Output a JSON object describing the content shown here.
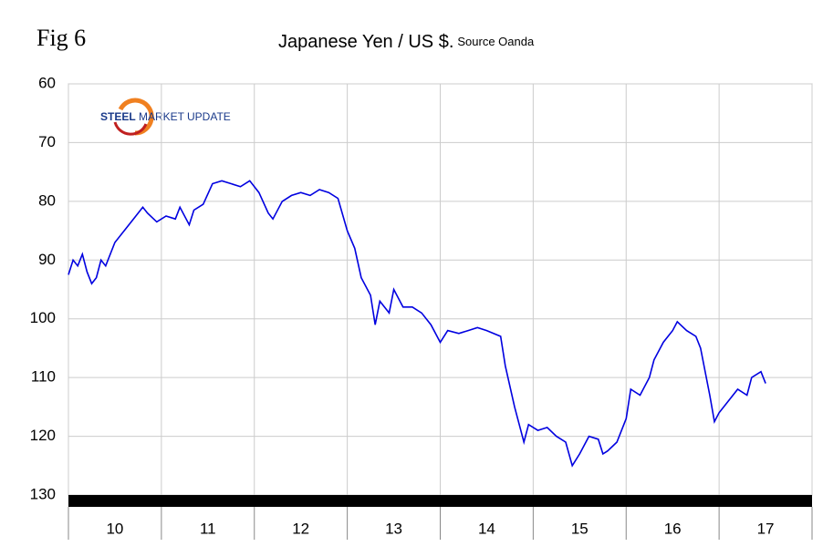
{
  "chart_data": {
    "type": "line",
    "figure_label": "Fig 6",
    "title": "Japanese Yen / US $.",
    "subtitle": "Source Oanda",
    "logo": [
      "STEEL",
      "MARKET",
      "UPDATE"
    ],
    "x_labels": [
      "10",
      "11",
      "12",
      "13",
      "14",
      "15",
      "16",
      "17"
    ],
    "xlim": [
      10,
      18
    ],
    "xticks": [
      10,
      11,
      12,
      13,
      14,
      15,
      16,
      17,
      18
    ],
    "ylim": [
      60,
      130
    ],
    "yticks": [
      60,
      70,
      80,
      90,
      100,
      110,
      120,
      130
    ],
    "y_inverted": true,
    "grid": true,
    "series": [
      {
        "color": "#0000e0",
        "x": [
          10.0,
          10.05,
          10.1,
          10.15,
          10.2,
          10.25,
          10.3,
          10.35,
          10.4,
          10.5,
          10.6,
          10.7,
          10.8,
          10.85,
          10.95,
          11.05,
          11.15,
          11.2,
          11.3,
          11.35,
          11.45,
          11.55,
          11.65,
          11.75,
          11.85,
          11.95,
          12.05,
          12.15,
          12.2,
          12.3,
          12.4,
          12.5,
          12.6,
          12.7,
          12.8,
          12.9,
          13.0,
          13.08,
          13.15,
          13.25,
          13.3,
          13.35,
          13.45,
          13.5,
          13.6,
          13.7,
          13.8,
          13.9,
          14.0,
          14.08,
          14.2,
          14.3,
          14.4,
          14.5,
          14.65,
          14.7,
          14.8,
          14.85,
          14.9,
          14.95,
          15.05,
          15.15,
          15.25,
          15.35,
          15.42,
          15.5,
          15.6,
          15.7,
          15.75,
          15.8,
          15.9,
          16.0,
          16.05,
          16.15,
          16.25,
          16.3,
          16.4,
          16.5,
          16.55,
          16.65,
          16.75,
          16.8,
          16.9,
          16.95,
          17.0,
          17.1,
          17.2,
          17.3,
          17.35,
          17.45,
          17.5
        ],
        "values": [
          92.5,
          90,
          91,
          89,
          92,
          94,
          93,
          90,
          91,
          87,
          85,
          83,
          81,
          82,
          83.5,
          82.5,
          83,
          81,
          84,
          81.5,
          80.5,
          77,
          76.5,
          77,
          77.5,
          76.5,
          78.5,
          82,
          83,
          80,
          79,
          78.5,
          79,
          78,
          78.5,
          79.5,
          85,
          88,
          93,
          96,
          101,
          97,
          99,
          95,
          98,
          98,
          99,
          101,
          104,
          102,
          102.5,
          102,
          101.5,
          102,
          103,
          108,
          115,
          118,
          121,
          118,
          119,
          118.5,
          120,
          121,
          125,
          123,
          120,
          120.5,
          123,
          122.5,
          121,
          117,
          112,
          113,
          110,
          107,
          104,
          102,
          100.5,
          102,
          103,
          105,
          113,
          117.5,
          116,
          114,
          112,
          113,
          110,
          109,
          111
        ]
      }
    ]
  }
}
